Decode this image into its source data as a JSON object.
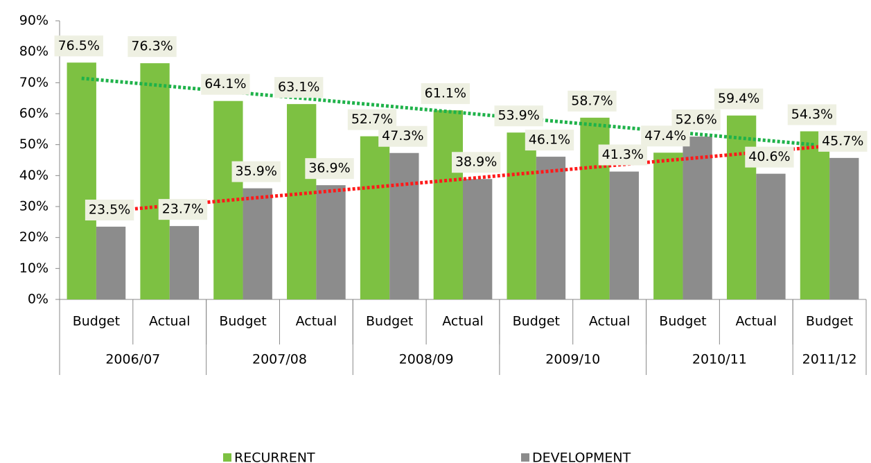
{
  "chart_data": {
    "type": "bar",
    "categories": [
      "Budget",
      "Actual",
      "Budget",
      "Actual",
      "Budget",
      "Actual",
      "Budget",
      "Actual",
      "Budget",
      "Actual",
      "Budget"
    ],
    "x_groups": [
      {
        "label": "2006/07",
        "size": 2
      },
      {
        "label": "2007/08",
        "size": 2
      },
      {
        "label": "2008/09",
        "size": 2
      },
      {
        "label": "2009/10",
        "size": 2
      },
      {
        "label": "2010/11",
        "size": 2
      },
      {
        "label": "2011/12",
        "size": 1
      }
    ],
    "series": [
      {
        "name": "RECURRENT",
        "color": "#7dc142",
        "trendline": true,
        "trendline_color": "#1fb24a",
        "values": [
          76.5,
          76.3,
          64.1,
          63.1,
          52.7,
          61.1,
          53.9,
          58.7,
          47.4,
          59.4,
          54.3
        ],
        "value_labels": [
          "76.5%",
          "76.3%",
          "64.1%",
          "63.1%",
          "52.7%",
          "61.1%",
          "53.9%",
          "58.7%",
          "47.4%",
          "59.4%",
          "54.3%"
        ]
      },
      {
        "name": "DEVELOPMENT",
        "color": "#8c8c8c",
        "trendline": true,
        "trendline_color": "#ff1a1a",
        "values": [
          23.5,
          23.7,
          35.9,
          36.9,
          47.3,
          38.9,
          46.1,
          41.3,
          52.6,
          40.6,
          45.7
        ],
        "value_labels": [
          "23.5%",
          "23.7%",
          "35.9%",
          "36.9%",
          "47.3%",
          "38.9%",
          "46.1%",
          "41.3%",
          "52.6%",
          "40.6%",
          "45.7%"
        ]
      }
    ],
    "ylim": [
      0,
      90
    ],
    "yticks": [
      {
        "value": 0,
        "label": "0%"
      },
      {
        "value": 10,
        "label": "10%"
      },
      {
        "value": 20,
        "label": "20%"
      },
      {
        "value": 30,
        "label": "30%"
      },
      {
        "value": 40,
        "label": "40%"
      },
      {
        "value": 50,
        "label": "50%"
      },
      {
        "value": 60,
        "label": "60%"
      },
      {
        "value": 70,
        "label": "70%"
      },
      {
        "value": 80,
        "label": "80%"
      },
      {
        "value": 90,
        "label": "90%"
      }
    ],
    "legend": "bottom"
  }
}
